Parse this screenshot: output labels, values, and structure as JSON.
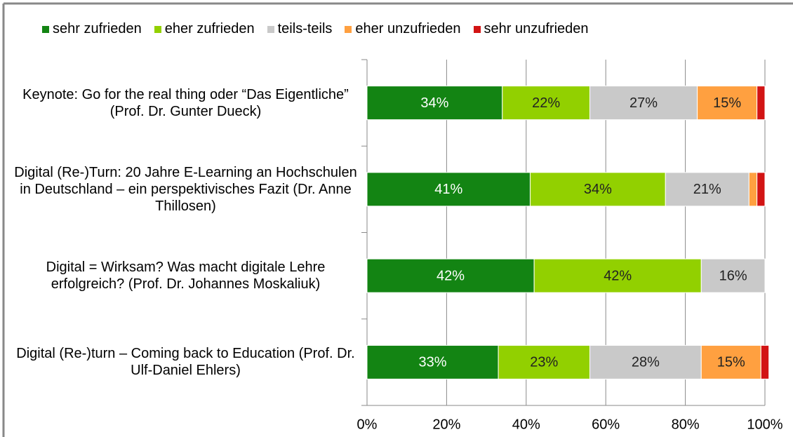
{
  "chart_data": {
    "type": "stacked_barh",
    "categories": [
      "Keynote: Go for the real thing oder “Das Eigentliche” (Prof. Dr. Gunter Dueck)",
      "Digital (Re-)Turn: 20 Jahre E-Learning an Hochschulen in Deutschland – ein perspektivisches Fazit (Dr. Anne Thillosen)",
      "Digital = Wirksam? Was macht digitale Lehre erfolgreich? (Prof. Dr. Johannes Moskaliuk)",
      "Digital (Re-)turn – Coming back to Education (Prof. Dr. Ulf-Daniel Ehlers)"
    ],
    "series": [
      {
        "name": "sehr zufrieden",
        "color": "#138413",
        "values": [
          34,
          41,
          42,
          33
        ],
        "value_labels": [
          "34%",
          "41%",
          "42%",
          "33%"
        ]
      },
      {
        "name": "eher zufrieden",
        "color": "#92d000",
        "values": [
          22,
          34,
          42,
          23
        ],
        "value_labels": [
          "22%",
          "34%",
          "42%",
          "23%"
        ]
      },
      {
        "name": "teils-teils",
        "color": "#c9c9c9",
        "values": [
          27,
          21,
          16,
          28
        ],
        "value_labels": [
          "27%",
          "21%",
          "16%",
          "28%"
        ]
      },
      {
        "name": "eher unzufrieden",
        "color": "#ffa040",
        "values": [
          15,
          2,
          0,
          15
        ],
        "value_labels": [
          "15%",
          null,
          null,
          "15%"
        ]
      },
      {
        "name": "sehr unzufrieden",
        "color": "#d21414",
        "values": [
          2,
          2,
          0,
          2
        ]
      }
    ],
    "xlim": [
      0,
      100
    ],
    "xticks": [
      {
        "value": 0,
        "label": "0%"
      },
      {
        "value": 20,
        "label": "20%"
      },
      {
        "value": 40,
        "label": "40%"
      },
      {
        "value": 60,
        "label": "60%"
      },
      {
        "value": 80,
        "label": "80%"
      },
      {
        "value": 100,
        "label": "100%"
      }
    ],
    "grid": true
  }
}
